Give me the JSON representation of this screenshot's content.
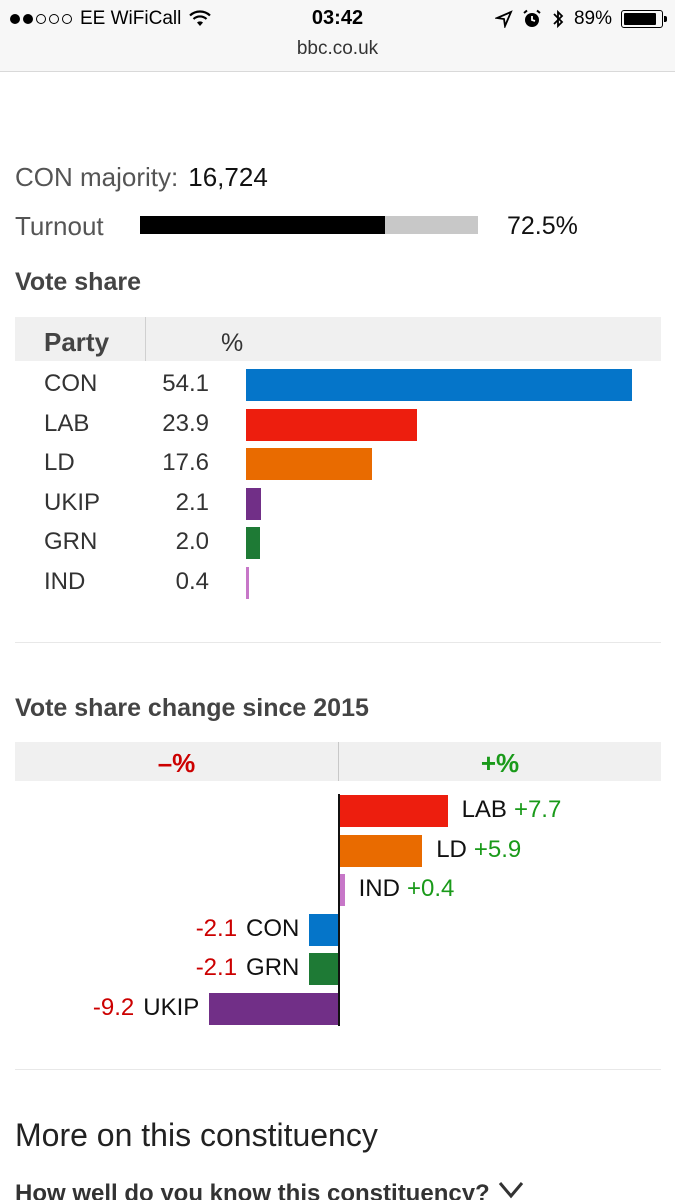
{
  "status_bar": {
    "carrier": "EE WiFiCall",
    "time": "03:42",
    "battery": "89%",
    "battery_level": 0.89,
    "signal_bars": 2
  },
  "url": "bbc.co.uk",
  "majority": {
    "label": "CON majority:",
    "value": "16,724"
  },
  "turnout": {
    "label": "Turnout",
    "value": "72.5%",
    "fraction": 0.725
  },
  "vote_share": {
    "title": "Vote share",
    "header_party": "Party",
    "header_pct": "%",
    "rows": [
      {
        "party": "CON",
        "value": "54.1",
        "color": "#0575c9"
      },
      {
        "party": "LAB",
        "value": "23.9",
        "color": "#ed1e0e"
      },
      {
        "party": "LD",
        "value": "17.6",
        "color": "#e96b00"
      },
      {
        "party": "UKIP",
        "value": "2.1",
        "color": "#712f87"
      },
      {
        "party": "GRN",
        "value": "2.0",
        "color": "#1e7a35"
      },
      {
        "party": "IND",
        "value": "0.4",
        "color": "#c777c8"
      }
    ]
  },
  "change": {
    "title": "Vote share change since 2015",
    "minus_header": "–%",
    "plus_header": "+%",
    "rows": [
      {
        "party": "LAB",
        "value": "+7.7",
        "color": "#ed1e0e"
      },
      {
        "party": "LD",
        "value": "+5.9",
        "color": "#e96b00"
      },
      {
        "party": "IND",
        "value": "+0.4",
        "color": "#c777c8"
      },
      {
        "party": "CON",
        "value": "-2.1",
        "color": "#0575c9"
      },
      {
        "party": "GRN",
        "value": "-2.1",
        "color": "#1e7a35"
      },
      {
        "party": "UKIP",
        "value": "-9.2",
        "color": "#712f87"
      }
    ]
  },
  "more": {
    "title": "More on this constituency",
    "quiz": "How well do you know this constituency?"
  }
}
